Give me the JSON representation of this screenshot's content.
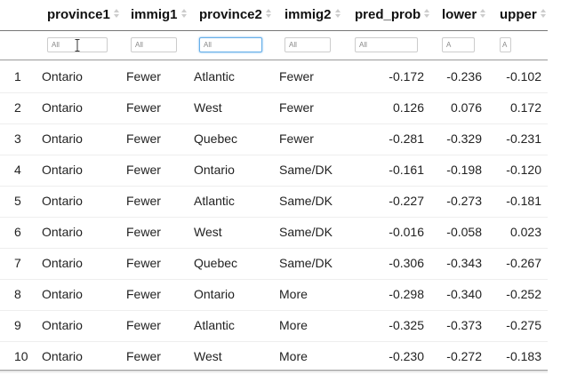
{
  "columns": [
    {
      "key": "rownum",
      "label": ""
    },
    {
      "key": "province1",
      "label": "province1"
    },
    {
      "key": "immig1",
      "label": "immig1"
    },
    {
      "key": "province2",
      "label": "province2"
    },
    {
      "key": "immig2",
      "label": "immig2"
    },
    {
      "key": "pred_prob",
      "label": "pred_prob"
    },
    {
      "key": "lower",
      "label": "lower"
    },
    {
      "key": "upper",
      "label": "upper"
    }
  ],
  "filters": {
    "province1": "All",
    "immig1": "All",
    "province2": "All",
    "immig2": "All",
    "pred_prob": "All",
    "lower": "A",
    "upper": "A"
  },
  "rows": [
    {
      "rownum": "1",
      "province1": "Ontario",
      "immig1": "Fewer",
      "province2": "Atlantic",
      "immig2": "Fewer",
      "pred_prob": "-0.172",
      "lower": "-0.236",
      "upper": "-0.102"
    },
    {
      "rownum": "2",
      "province1": "Ontario",
      "immig1": "Fewer",
      "province2": "West",
      "immig2": "Fewer",
      "pred_prob": "0.126",
      "lower": "0.076",
      "upper": "0.172"
    },
    {
      "rownum": "3",
      "province1": "Ontario",
      "immig1": "Fewer",
      "province2": "Quebec",
      "immig2": "Fewer",
      "pred_prob": "-0.281",
      "lower": "-0.329",
      "upper": "-0.231"
    },
    {
      "rownum": "4",
      "province1": "Ontario",
      "immig1": "Fewer",
      "province2": "Ontario",
      "immig2": "Same/DK",
      "pred_prob": "-0.161",
      "lower": "-0.198",
      "upper": "-0.120"
    },
    {
      "rownum": "5",
      "province1": "Ontario",
      "immig1": "Fewer",
      "province2": "Atlantic",
      "immig2": "Same/DK",
      "pred_prob": "-0.227",
      "lower": "-0.273",
      "upper": "-0.181"
    },
    {
      "rownum": "6",
      "province1": "Ontario",
      "immig1": "Fewer",
      "province2": "West",
      "immig2": "Same/DK",
      "pred_prob": "-0.016",
      "lower": "-0.058",
      "upper": "0.023"
    },
    {
      "rownum": "7",
      "province1": "Ontario",
      "immig1": "Fewer",
      "province2": "Quebec",
      "immig2": "Same/DK",
      "pred_prob": "-0.306",
      "lower": "-0.343",
      "upper": "-0.267"
    },
    {
      "rownum": "8",
      "province1": "Ontario",
      "immig1": "Fewer",
      "province2": "Ontario",
      "immig2": "More",
      "pred_prob": "-0.298",
      "lower": "-0.340",
      "upper": "-0.252"
    },
    {
      "rownum": "9",
      "province1": "Ontario",
      "immig1": "Fewer",
      "province2": "Atlantic",
      "immig2": "More",
      "pred_prob": "-0.325",
      "lower": "-0.373",
      "upper": "-0.275"
    },
    {
      "rownum": "10",
      "province1": "Ontario",
      "immig1": "Fewer",
      "province2": "West",
      "immig2": "More",
      "pred_prob": "-0.230",
      "lower": "-0.272",
      "upper": "-0.183"
    }
  ],
  "active_filter": "province2"
}
